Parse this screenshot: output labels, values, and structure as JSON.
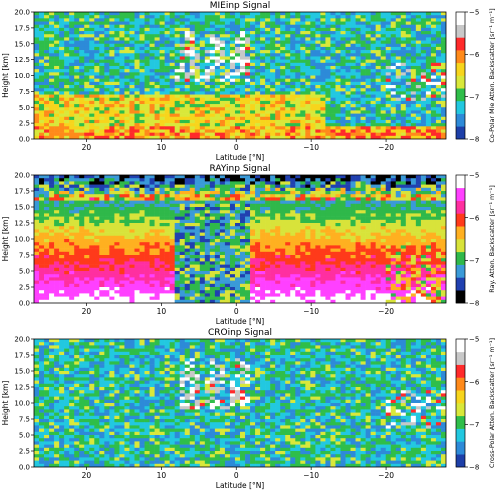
{
  "chart_data": [
    {
      "type": "heatmap",
      "title": "MIEinp Signal",
      "xlabel": "Latitude [°N]",
      "ylabel": "Height [km]",
      "xlim": [
        27,
        -28
      ],
      "ylim": [
        0,
        20
      ],
      "x_ticks": [
        20,
        10,
        0,
        -10,
        -20
      ],
      "x_tick_labels": [
        "20",
        "10",
        "0",
        "−10",
        "−20"
      ],
      "y_ticks": [
        0,
        2.5,
        5,
        7.5,
        10,
        12.5,
        15,
        17.5,
        20
      ],
      "y_tick_labels": [
        "0.0",
        "2.5",
        "5.0",
        "7.5",
        "10.0",
        "12.5",
        "15.0",
        "17.5",
        "20.0"
      ],
      "colorbar": {
        "label": "Co-Polar Mie Atten. Backscatter [sr⁻¹ m⁻¹]",
        "range": [
          -8,
          -5
        ],
        "ticks": [
          -8,
          -7,
          -6,
          -5
        ],
        "tick_labels": [
          "−8",
          "−7",
          "−6",
          "−5"
        ],
        "colors": [
          "#1d3fa8",
          "#2d8ad8",
          "#22c8e0",
          "#2fbe4a",
          "#d9e83a",
          "#f7d51c",
          "#ff8a1a",
          "#ff2a2a",
          "#c8c8c8",
          "#ffffff"
        ]
      },
      "features": [
        {
          "latitude_range": [
            8,
            -2
          ],
          "height_range": [
            9,
            17
          ],
          "description": "high cloud, backscatter about -5.5"
        },
        {
          "latitude_range": [
            27,
            -12
          ],
          "height_range": [
            1.5,
            7
          ],
          "description": "boundary layer aerosol, backscatter about -7"
        }
      ]
    },
    {
      "type": "heatmap",
      "title": "RAYinp Signal",
      "xlabel": "Latitude [°N]",
      "ylabel": "Height [km]",
      "xlim": [
        27,
        -28
      ],
      "ylim": [
        0,
        20
      ],
      "x_ticks": [
        20,
        10,
        0,
        -10,
        -20
      ],
      "x_tick_labels": [
        "20",
        "10",
        "0",
        "−10",
        "−20"
      ],
      "y_ticks": [
        0,
        2.5,
        5,
        7.5,
        10,
        12.5,
        15,
        17.5,
        20
      ],
      "y_tick_labels": [
        "0.0",
        "2.5",
        "5.0",
        "7.5",
        "10.0",
        "12.5",
        "15.0",
        "17.5",
        "20.0"
      ],
      "colorbar": {
        "label": "Ray. Atten. Backscatter [sr⁻¹ m⁻¹]",
        "range": [
          -8,
          -5
        ],
        "ticks": [
          -8,
          -7,
          -6,
          -5
        ],
        "tick_labels": [
          "−8",
          "−7",
          "−6",
          "−5"
        ],
        "colors": [
          "#000000",
          "#2040b0",
          "#3a9ad8",
          "#2fb84a",
          "#d8e33a",
          "#ffb020",
          "#ff3a1a",
          "#ff2fa0",
          "#ff40ff",
          "#ffffff"
        ]
      },
      "features": [
        {
          "latitude_range": [
            8,
            -2
          ],
          "height_range": [
            0,
            15.5
          ],
          "description": "signal attenuated below high cloud"
        },
        {
          "latitude_range": [
            27,
            -28
          ],
          "height_range": [
            0,
            12
          ],
          "description": "molecular backscatter about -5.8"
        }
      ]
    },
    {
      "type": "heatmap",
      "title": "CROinp Signal",
      "xlabel": "Latitude [°N]",
      "ylabel": "Height [km]",
      "xlim": [
        27,
        -28
      ],
      "ylim": [
        0,
        20
      ],
      "x_ticks": [
        20,
        10,
        0,
        -10,
        -20
      ],
      "x_tick_labels": [
        "20",
        "10",
        "0",
        "−10",
        "−20"
      ],
      "y_ticks": [
        0,
        2.5,
        5,
        7.5,
        10,
        12.5,
        15,
        17.5,
        20
      ],
      "y_tick_labels": [
        "0.0",
        "2.5",
        "5.0",
        "7.5",
        "10.0",
        "12.5",
        "15.0",
        "17.5",
        "20.0"
      ],
      "colorbar": {
        "label": "Cross-Polar Atten. Backscatter [sr⁻¹ m⁻¹]",
        "range": [
          -8,
          -5
        ],
        "ticks": [
          -8,
          -7,
          -6,
          -5
        ],
        "tick_labels": [
          "−8",
          "−7",
          "−6",
          "−5"
        ],
        "colors": [
          "#1d3fa8",
          "#2d8ad8",
          "#22c8e0",
          "#2fbe4a",
          "#d9e83a",
          "#f7d51c",
          "#ff8a1a",
          "#ff2a2a",
          "#c8c8c8",
          "#ffffff"
        ]
      },
      "features": [
        {
          "latitude_range": [
            8,
            -2
          ],
          "height_range": [
            9,
            17
          ],
          "description": "high cloud depolarization"
        }
      ]
    }
  ]
}
